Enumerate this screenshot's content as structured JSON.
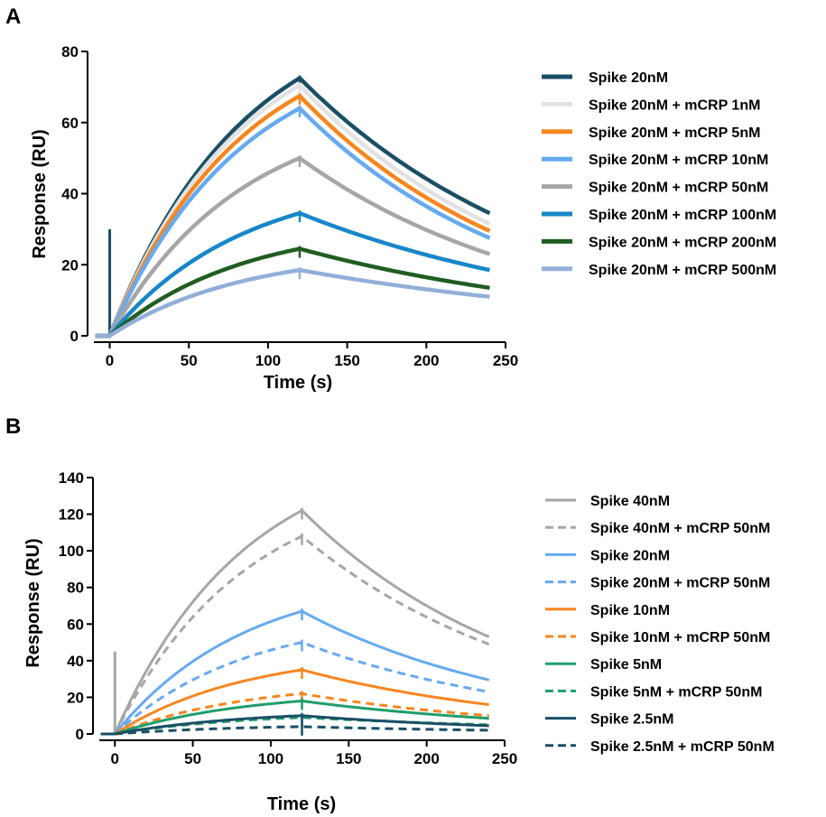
{
  "chart_data": [
    {
      "panel": "A",
      "type": "line",
      "title": "",
      "xlabel": "Time (s)",
      "ylabel": "Response (RU)",
      "xlim": [
        -10,
        250
      ],
      "ylim": [
        0,
        80
      ],
      "xticks": [
        0,
        50,
        100,
        150,
        200,
        250
      ],
      "yticks": [
        0,
        20,
        40,
        60,
        80
      ],
      "legend_position": "right",
      "injection_end": 120,
      "end_time": 240,
      "series": [
        {
          "name": "Spike 20nM",
          "color": "#1a4f66",
          "dash": "solid",
          "peak": 72.5,
          "end": 34.5,
          "spike": 30
        },
        {
          "name": "Spike 20nM + mCRP 1nM",
          "color": "#e2e2e2",
          "dash": "solid",
          "peak": 70.5,
          "end": 31.5
        },
        {
          "name": "Spike 20nM + mCRP 5nM",
          "color": "#f7861f",
          "dash": "solid",
          "peak": 67.5,
          "end": 29.5
        },
        {
          "name": "Spike 20nM + mCRP 10nM",
          "color": "#66aaf0",
          "dash": "solid",
          "peak": 64,
          "end": 27.5
        },
        {
          "name": "Spike 20nM + mCRP 50nM",
          "color": "#a6a6a6",
          "dash": "solid",
          "peak": 50,
          "end": 23
        },
        {
          "name": "Spike 20nM + mCRP 100nM",
          "color": "#1787c8",
          "dash": "solid",
          "peak": 34.5,
          "end": 18.5
        },
        {
          "name": "Spike 20nM + mCRP 200nM",
          "color": "#1f5e20",
          "dash": "solid",
          "peak": 24.5,
          "end": 13.5
        },
        {
          "name": "Spike 20nM + mCRP 500nM",
          "color": "#92afd9",
          "dash": "solid",
          "peak": 18.5,
          "end": 11
        }
      ]
    },
    {
      "panel": "B",
      "type": "line",
      "title": "",
      "xlabel": "Time (s)",
      "ylabel": "Response (RU)",
      "xlim": [
        -10,
        250
      ],
      "ylim": [
        0,
        140
      ],
      "xticks": [
        0,
        50,
        100,
        150,
        200,
        250
      ],
      "yticks": [
        0,
        20,
        40,
        60,
        80,
        100,
        120,
        140
      ],
      "legend_position": "right",
      "injection_end": 120,
      "end_time": 240,
      "series": [
        {
          "name": "Spike 40nM",
          "color": "#a6a6a6",
          "dash": "solid",
          "peak": 122,
          "end": 53,
          "spike": 45
        },
        {
          "name": "Spike 40nM + mCRP 50nM",
          "color": "#a6a6a6",
          "dash": "dashed",
          "peak": 108,
          "end": 49
        },
        {
          "name": "Spike 20nM",
          "color": "#66aaf0",
          "dash": "solid",
          "peak": 67,
          "end": 29.5
        },
        {
          "name": "Spike 20nM + mCRP 50nM",
          "color": "#66aaf0",
          "dash": "dashed",
          "peak": 50,
          "end": 23
        },
        {
          "name": "Spike 10nM",
          "color": "#f7861f",
          "dash": "solid",
          "peak": 35,
          "end": 16
        },
        {
          "name": "Spike 10nM + mCRP 50nM",
          "color": "#f7861f",
          "dash": "dashed",
          "peak": 22,
          "end": 10
        },
        {
          "name": "Spike 5nM",
          "color": "#1f9e6a",
          "dash": "solid",
          "peak": 18,
          "end": 8.5
        },
        {
          "name": "Spike 5nM + mCRP 50nM",
          "color": "#1f9e6a",
          "dash": "dashed",
          "peak": 9,
          "end": 5
        },
        {
          "name": "Spike 2.5nM",
          "color": "#1a4f66",
          "dash": "solid",
          "peak": 10,
          "end": 4.5
        },
        {
          "name": "Spike 2.5nM + mCRP 50nM",
          "color": "#1a4f66",
          "dash": "dashed",
          "peak": 4,
          "end": 2
        }
      ]
    }
  ],
  "panels": [
    {
      "letter": "A"
    },
    {
      "letter": "B"
    }
  ]
}
